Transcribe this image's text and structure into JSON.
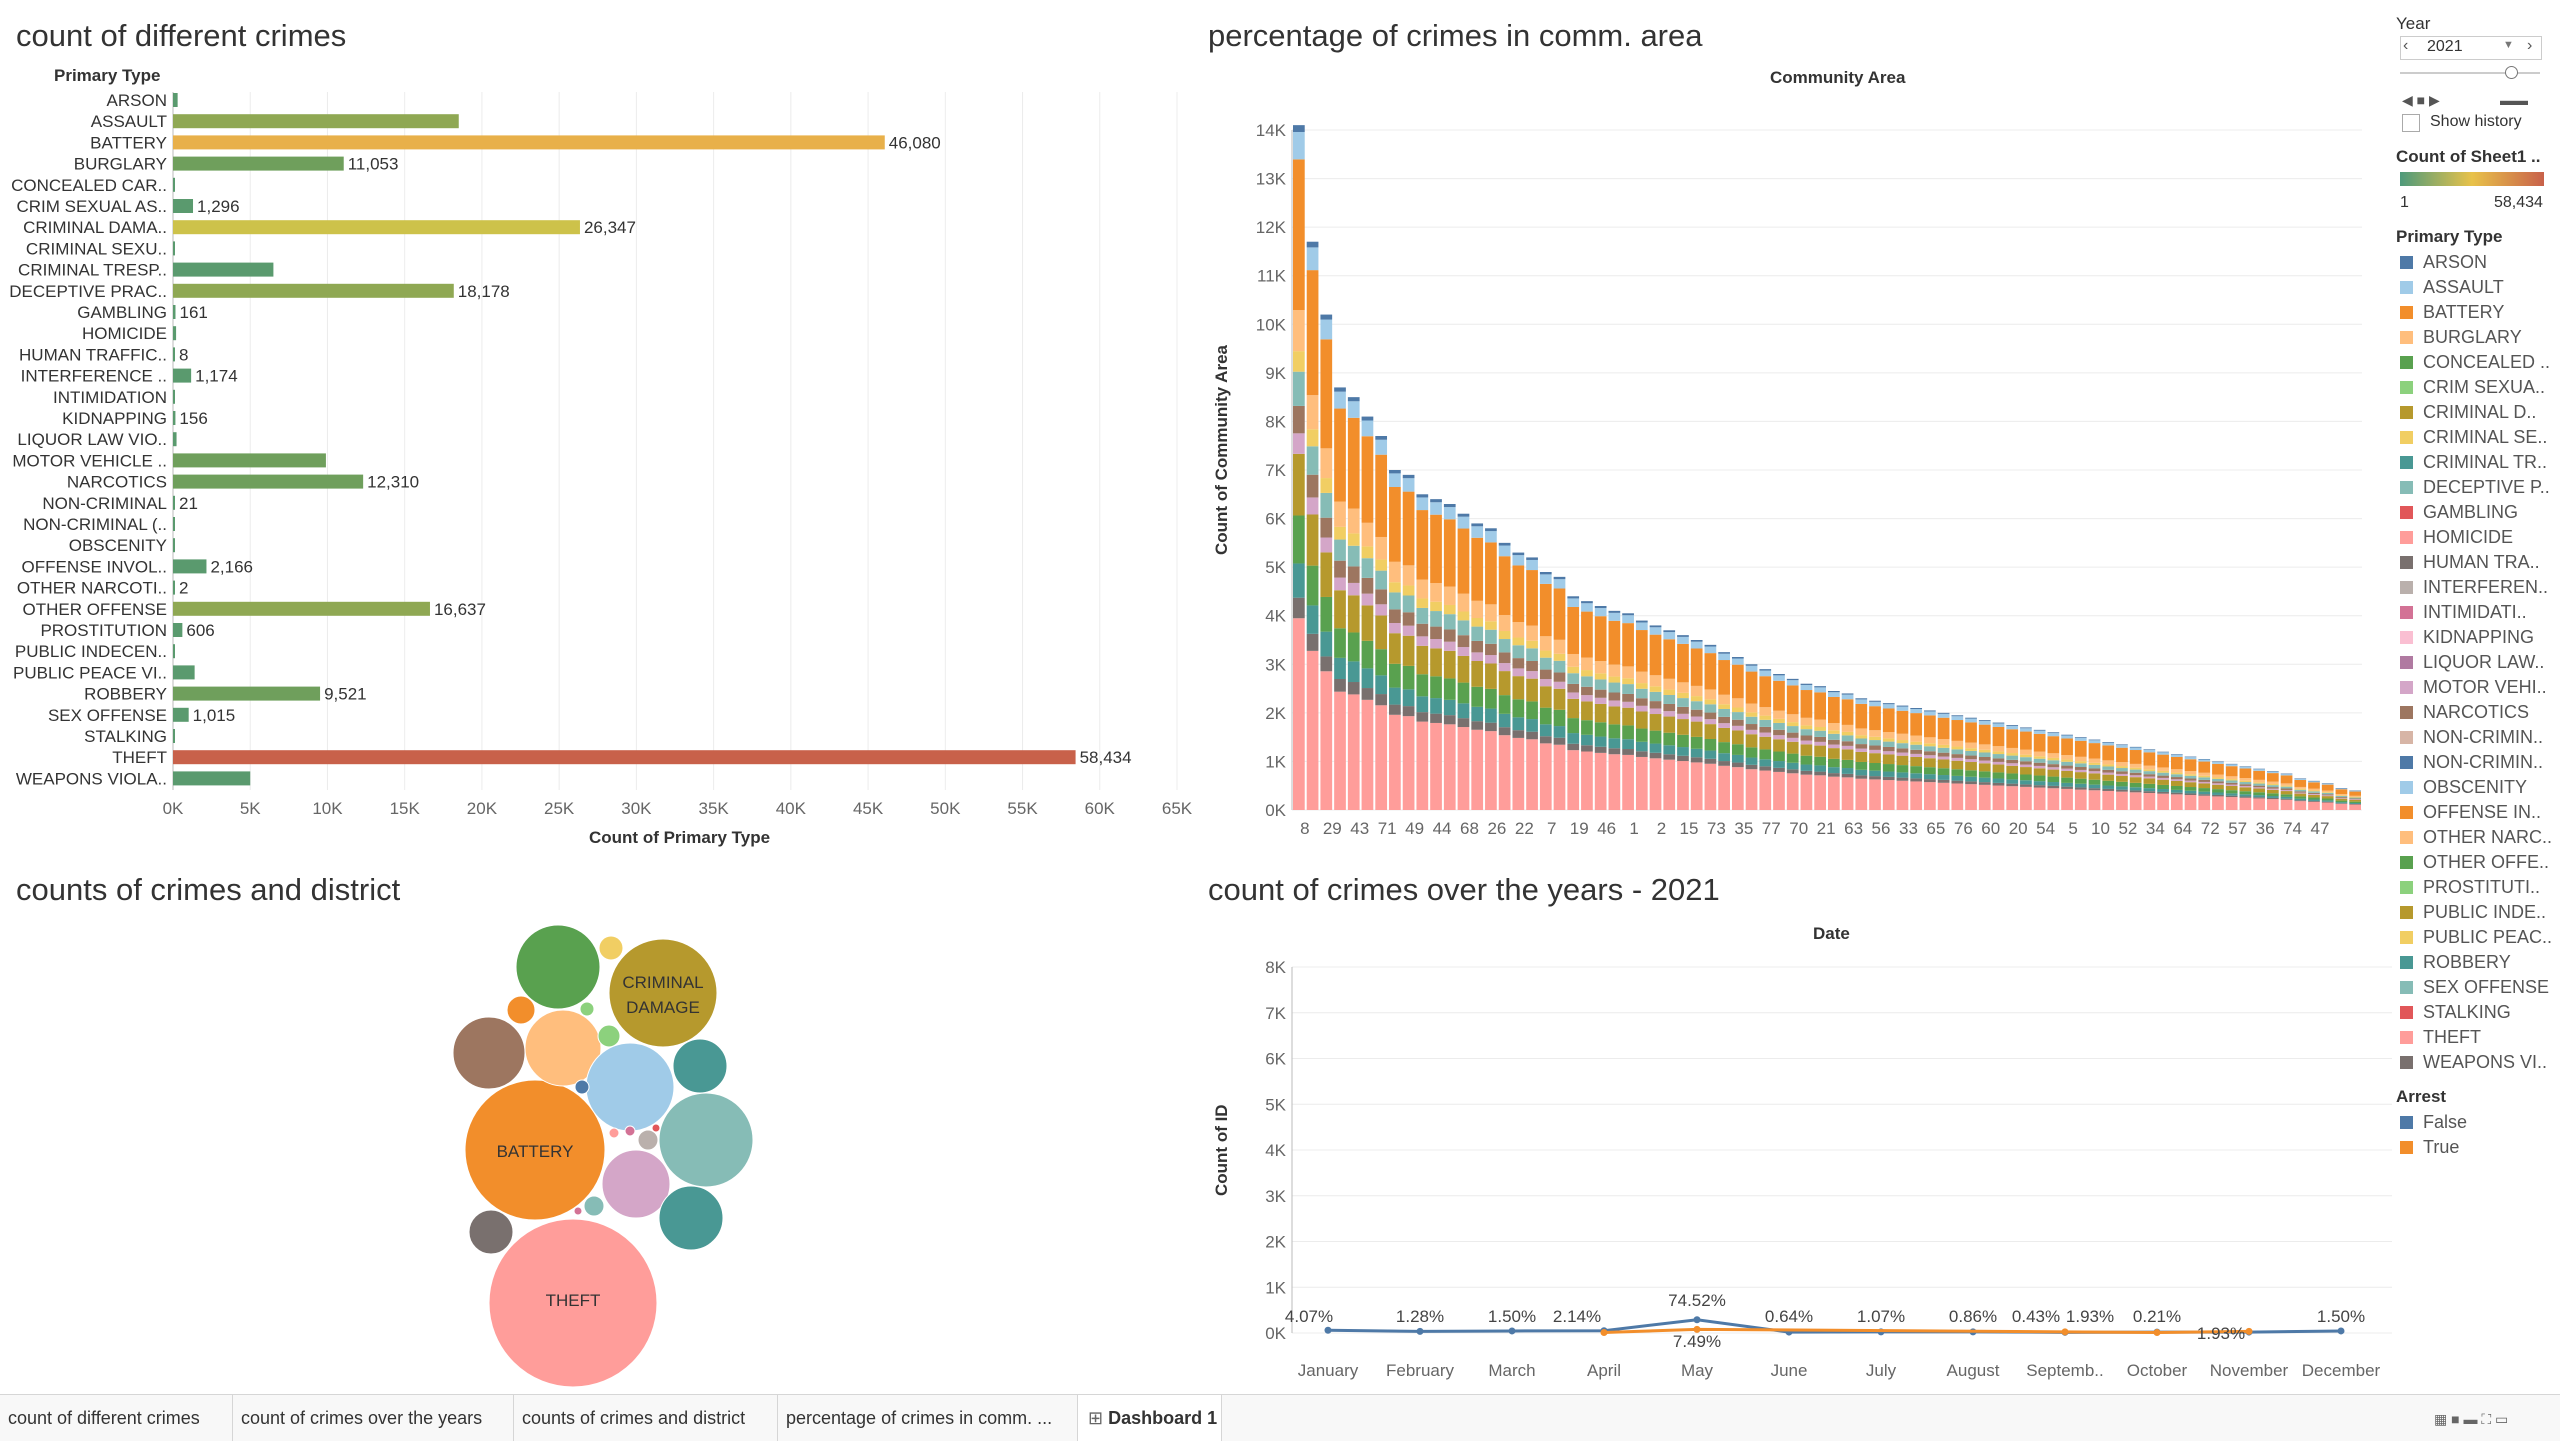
{
  "colors": {
    "arson": "#4e79a7",
    "assault": "#a0cbe8",
    "battery": "#f28e2b",
    "burglary": "#ffbe7d",
    "concealed": "#59a14f",
    "crim_sexual": "#8cd17d",
    "criminal_damage": "#b6992d",
    "criminal_sexual": "#f1ce63",
    "criminal_trespass": "#499894",
    "deceptive": "#86bcb6",
    "gambling": "#e15759",
    "homicide": "#ff9d9a",
    "human_trafficking": "#79706e",
    "interference": "#bab0ac",
    "intimidation": "#d37295",
    "kidnapping": "#fabfd2",
    "liquor": "#b07aa1",
    "motor_vehicle": "#d4a6c8",
    "narcotics": "#9d7660",
    "non_criminal": "#d7b5a6",
    "non_criminal_2": "#4e79a7",
    "obscenity": "#a0cbe8",
    "offense_involving": "#f28e2b",
    "other_narcotic": "#ffbe7d",
    "other_offense": "#59a14f",
    "prostitution": "#8cd17d",
    "public_indecency": "#b6992d",
    "public_peace": "#f1ce63",
    "robbery": "#499894",
    "sex_offense": "#86bcb6",
    "stalking": "#e15759",
    "theft": "#ff9d9a",
    "weapons": "#79706e",
    "arrest_false": "#4e79a7",
    "arrest_true": "#f28e2b",
    "heat_low": "#4e9a7b",
    "heat_mid": "#e8c24a",
    "heat_high": "#c8614a"
  },
  "chart_data": [
    {
      "type": "bar",
      "title": "count of different crimes",
      "ylabel": "Primary Type",
      "xlabel": "Count of Primary Type",
      "xlim": [
        0,
        65000
      ],
      "xticks": [
        "0K",
        "5K",
        "10K",
        "15K",
        "20K",
        "25K",
        "30K",
        "35K",
        "40K",
        "45K",
        "50K",
        "55K",
        "60K",
        "65K"
      ],
      "categories": [
        "ARSON",
        "ASSAULT",
        "BATTERY",
        "BURGLARY",
        "CONCEALED CAR..",
        "CRIM SEXUAL AS..",
        "CRIMINAL DAMA..",
        "CRIMINAL SEXU..",
        "CRIMINAL TRESP..",
        "DECEPTIVE PRAC..",
        "GAMBLING",
        "HOMICIDE",
        "HUMAN TRAFFIC..",
        "INTERFERENCE ..",
        "INTIMIDATION",
        "KIDNAPPING",
        "LIQUOR LAW VIO..",
        "MOTOR VEHICLE ..",
        "NARCOTICS",
        "NON-CRIMINAL",
        "NON-CRIMINAL (..",
        "OBSCENITY",
        "OFFENSE INVOL..",
        "OTHER NARCOTI..",
        "OTHER OFFENSE",
        "PROSTITUTION",
        "PUBLIC INDECEN..",
        "PUBLIC PEACE VI..",
        "ROBBERY",
        "SEX OFFENSE",
        "STALKING",
        "THEFT",
        "WEAPONS VIOLA.."
      ],
      "values": [
        300,
        18500,
        46080,
        11053,
        60,
        1296,
        26347,
        100,
        6500,
        18178,
        161,
        200,
        8,
        1174,
        90,
        156,
        230,
        9900,
        12310,
        21,
        4,
        20,
        2166,
        2,
        16637,
        606,
        30,
        1400,
        9521,
        1015,
        100,
        58434,
        5000
      ],
      "labels": [
        "",
        "",
        "46,080",
        "11,053",
        "",
        "1,296",
        "26,347",
        "",
        "",
        "18,178",
        "161",
        "",
        "8",
        "1,174",
        "",
        "156",
        "",
        "",
        "12,310",
        "21",
        "",
        "",
        "2,166",
        "2",
        "16,637",
        "606",
        "",
        "",
        "9,521",
        "1,015",
        "",
        "58,434",
        ""
      ]
    },
    {
      "type": "bar",
      "title": "percentage of crimes in comm. area",
      "xlabel": "Community Area",
      "ylabel": "Count of Community Area",
      "ylim": [
        0,
        14000
      ],
      "yticks": [
        "0K",
        "1K",
        "2K",
        "3K",
        "4K",
        "5K",
        "6K",
        "7K",
        "8K",
        "9K",
        "10K",
        "11K",
        "12K",
        "13K",
        "14K"
      ],
      "x_labels_shown": [
        "8",
        "29",
        "43",
        "71",
        "49",
        "44",
        "68",
        "26",
        "22",
        "7",
        "19",
        "46",
        "1",
        "2",
        "15",
        "73",
        "35",
        "77",
        "70",
        "21",
        "63",
        "56",
        "33",
        "65",
        "76",
        "60",
        "20",
        "54",
        "5",
        "10",
        "52",
        "34",
        "64",
        "72",
        "57",
        "36",
        "74",
        "47"
      ],
      "totals": [
        14100,
        11700,
        10200,
        8700,
        8500,
        8100,
        7700,
        7000,
        6900,
        6500,
        6400,
        6300,
        6100,
        5900,
        5800,
        5500,
        5300,
        5200,
        4900,
        4800,
        4400,
        4300,
        4200,
        4100,
        4050,
        3900,
        3800,
        3700,
        3600,
        3500,
        3400,
        3250,
        3150,
        3000,
        2900,
        2800,
        2700,
        2600,
        2550,
        2450,
        2400,
        2300,
        2250,
        2200,
        2150,
        2100,
        2050,
        2000,
        1950,
        1900,
        1850,
        1800,
        1750,
        1700,
        1650,
        1600,
        1550,
        1500,
        1450,
        1400,
        1350,
        1300,
        1250,
        1200,
        1150,
        1100,
        1050,
        1000,
        950,
        900,
        850,
        800,
        750,
        650,
        600,
        550,
        450,
        400
      ]
    },
    {
      "type": "scatter",
      "title": "counts of crimes and district",
      "bubble_labels": [
        "CRIMINAL DAMAGE",
        "BATTERY",
        "THEFT"
      ]
    },
    {
      "type": "line",
      "title": "count of crimes over the years - 2021",
      "xlabel": "Date",
      "ylabel": "Count of ID",
      "ylim": [
        0,
        8000
      ],
      "yticks": [
        "0K",
        "1K",
        "2K",
        "3K",
        "4K",
        "5K",
        "6K",
        "7K",
        "8K"
      ],
      "categories": [
        "January",
        "February",
        "March",
        "April",
        "May",
        "June",
        "July",
        "August",
        "Septemb..",
        "October",
        "November",
        "December"
      ],
      "series": [
        {
          "name": "False",
          "values": [
            60,
            35,
            45,
            50,
            290,
            20,
            25,
            25,
            15,
            20,
            20,
            45
          ],
          "labels": [
            "4.07%",
            "1.28%",
            "1.50%",
            "2.14%",
            "74.52%",
            "0.64%",
            "1.07%",
            "0.86%",
            "0.43%",
            "",
            "",
            "1.50%"
          ]
        },
        {
          "name": "True",
          "values": [
            null,
            null,
            null,
            10,
            80,
            null,
            null,
            null,
            25,
            10,
            35,
            null
          ],
          "labels": [
            "",
            "",
            "",
            "",
            "7.49%",
            "",
            "",
            "",
            "1.93%",
            "0.21%",
            "1.93%",
            ""
          ]
        }
      ]
    }
  ],
  "filters": {
    "year_label": "Year",
    "year_value": "2021",
    "show_history": "Show history",
    "color_legend_title": "Count of Sheet1 ..",
    "color_min": "1",
    "color_max": "58,434",
    "primary_type_title": "Primary Type",
    "primary_types": [
      {
        "label": "ARSON",
        "color": "#4e79a7"
      },
      {
        "label": "ASSAULT",
        "color": "#a0cbe8"
      },
      {
        "label": "BATTERY",
        "color": "#f28e2b"
      },
      {
        "label": "BURGLARY",
        "color": "#ffbe7d"
      },
      {
        "label": "CONCEALED ..",
        "color": "#59a14f"
      },
      {
        "label": "CRIM SEXUA..",
        "color": "#8cd17d"
      },
      {
        "label": "CRIMINAL D..",
        "color": "#b6992d"
      },
      {
        "label": "CRIMINAL SE..",
        "color": "#f1ce63"
      },
      {
        "label": "CRIMINAL TR..",
        "color": "#499894"
      },
      {
        "label": "DECEPTIVE P..",
        "color": "#86bcb6"
      },
      {
        "label": "GAMBLING",
        "color": "#e15759"
      },
      {
        "label": "HOMICIDE",
        "color": "#ff9d9a"
      },
      {
        "label": "HUMAN TRA..",
        "color": "#79706e"
      },
      {
        "label": "INTERFEREN..",
        "color": "#bab0ac"
      },
      {
        "label": "INTIMIDATI..",
        "color": "#d37295"
      },
      {
        "label": "KIDNAPPING",
        "color": "#fabfd2"
      },
      {
        "label": "LIQUOR LAW..",
        "color": "#b07aa1"
      },
      {
        "label": "MOTOR VEHI..",
        "color": "#d4a6c8"
      },
      {
        "label": "NARCOTICS",
        "color": "#9d7660"
      },
      {
        "label": "NON-CRIMIN..",
        "color": "#d7b5a6"
      },
      {
        "label": "NON-CRIMIN..",
        "color": "#4e79a7"
      },
      {
        "label": "OBSCENITY",
        "color": "#a0cbe8"
      },
      {
        "label": "OFFENSE IN..",
        "color": "#f28e2b"
      },
      {
        "label": "OTHER NARC..",
        "color": "#ffbe7d"
      },
      {
        "label": "OTHER OFFE..",
        "color": "#59a14f"
      },
      {
        "label": "PROSTITUTI..",
        "color": "#8cd17d"
      },
      {
        "label": "PUBLIC INDE..",
        "color": "#b6992d"
      },
      {
        "label": "PUBLIC PEAC..",
        "color": "#f1ce63"
      },
      {
        "label": "ROBBERY",
        "color": "#499894"
      },
      {
        "label": "SEX OFFENSE",
        "color": "#86bcb6"
      },
      {
        "label": "STALKING",
        "color": "#e15759"
      },
      {
        "label": "THEFT",
        "color": "#ff9d9a"
      },
      {
        "label": "WEAPONS VI..",
        "color": "#79706e"
      }
    ],
    "arrest_title": "Arrest",
    "arrest": [
      {
        "label": "False",
        "color": "#4e79a7"
      },
      {
        "label": "True",
        "color": "#f28e2b"
      }
    ]
  },
  "tabs": [
    {
      "label": "count of different crimes"
    },
    {
      "label": "count of crimes over the years"
    },
    {
      "label": "counts of crimes and district"
    },
    {
      "label": "percentage of crimes in comm. ..."
    },
    {
      "label": "Dashboard 1"
    }
  ]
}
